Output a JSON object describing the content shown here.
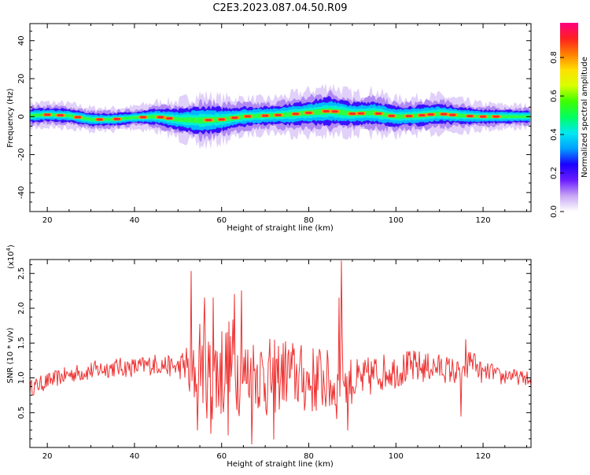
{
  "figure_title": "C2E3.2023.087.04.50.R09",
  "colorbar": {
    "label": "Normalized spectral amplitude",
    "ticks": [
      "0.0",
      "0.2",
      "0.4",
      "0.6",
      "0.8"
    ],
    "tick_values": [
      0.0,
      0.2,
      0.4,
      0.6,
      0.8
    ],
    "range": [
      0,
      0.98
    ],
    "colormap": [
      "#ffffff",
      "#c8a6f5",
      "#6a1cff",
      "#1a00ff",
      "#00a0ff",
      "#00e8f0",
      "#00ff60",
      "#3cff00",
      "#d8ff00",
      "#ffe000",
      "#ff8000",
      "#ff2020",
      "#ff0080"
    ]
  },
  "chart_data": [
    {
      "type": "heatmap",
      "xlabel": "Height of straight line (km)",
      "ylabel": "Frequency (Hz)",
      "xlim": [
        16,
        131
      ],
      "ylim": [
        -50,
        49
      ],
      "x_ticks": [
        20,
        40,
        60,
        80,
        100,
        120
      ],
      "y_ticks": [
        -40,
        -20,
        0,
        20,
        40
      ],
      "x_tick_labels": [
        "20",
        "40",
        "60",
        "80",
        "100",
        "120"
      ],
      "y_tick_labels": [
        "-40",
        "-20",
        "0",
        "20",
        "40"
      ],
      "ridge_center_hz": {
        "x": [
          16,
          20,
          25,
          30,
          35,
          40,
          45,
          50,
          55,
          60,
          65,
          70,
          75,
          80,
          85,
          90,
          95,
          100,
          105,
          110,
          115,
          120,
          125,
          131
        ],
        "y": [
          0.5,
          1.0,
          0.5,
          -1.5,
          -1.5,
          -0.5,
          0.0,
          -1.5,
          -2.0,
          -1.5,
          0.0,
          0.5,
          1.0,
          2.0,
          3.0,
          1.5,
          2.0,
          0.0,
          0.5,
          1.5,
          0.5,
          0.0,
          0.0,
          0.0
        ]
      },
      "ridge_halfwidth_hz": {
        "x": [
          16,
          40,
          50,
          55,
          60,
          65,
          70,
          80,
          85,
          90,
          95,
          100,
          110,
          120,
          131
        ],
        "y": [
          3.5,
          3.0,
          5.0,
          7.0,
          6.0,
          5.0,
          4.5,
          6.0,
          7.0,
          5.5,
          6.0,
          5.0,
          5.0,
          3.5,
          3.0
        ]
      },
      "peak_marker_km": [
        20,
        23,
        27,
        32,
        36,
        42,
        46,
        48,
        57,
        60,
        63,
        66,
        70,
        73,
        77,
        80,
        84,
        86,
        90,
        92,
        96,
        99,
        103,
        106,
        108,
        111,
        113,
        117,
        120,
        123
      ]
    },
    {
      "type": "line",
      "xlabel": "Height of straight line (km)",
      "ylabel": "SNR (10 * v/v)",
      "y_scale_label": "(x10",
      "y_scale_exponent": "4",
      "y_scale_close": ")",
      "xlim": [
        16,
        131
      ],
      "ylim": [
        0,
        2.7
      ],
      "x_ticks": [
        20,
        40,
        60,
        80,
        100,
        120
      ],
      "y_ticks": [
        0.5,
        1.0,
        1.5,
        2.0,
        2.5
      ],
      "x_tick_labels": [
        "20",
        "40",
        "60",
        "80",
        "100",
        "120"
      ],
      "y_tick_labels": [
        "0.5",
        "1.0",
        "1.5",
        "2.0",
        "2.5"
      ],
      "color": "#ee3333",
      "series": [
        {
          "x": [
            16,
            20,
            25,
            30,
            35,
            40,
            45,
            50,
            52,
            53,
            55,
            57,
            60,
            63,
            65,
            68,
            70,
            72,
            75,
            78,
            80,
            83,
            85,
            87,
            87.5,
            88,
            90,
            92,
            95,
            98,
            100,
            103,
            105,
            108,
            110,
            113,
            115,
            116,
            117,
            118,
            120,
            122,
            124,
            126,
            128,
            130,
            131
          ],
          "y": [
            0.85,
            0.95,
            1.05,
            1.1,
            1.15,
            1.15,
            1.2,
            1.15,
            1.2,
            0.9,
            1.3,
            1.0,
            1.1,
            1.2,
            1.0,
            1.1,
            1.0,
            1.0,
            1.1,
            1.0,
            0.95,
            1.0,
            0.9,
            0.8,
            1.5,
            1.0,
            0.95,
            0.95,
            1.05,
            1.1,
            1.1,
            1.15,
            1.15,
            1.15,
            1.15,
            1.1,
            1.05,
            1.0,
            1.3,
            1.2,
            1.05,
            1.1,
            1.0,
            1.05,
            1.0,
            1.0,
            0.9
          ],
          "amp": [
            0.12,
            0.12,
            0.12,
            0.14,
            0.14,
            0.14,
            0.15,
            0.15,
            0.3,
            0.45,
            0.6,
            0.65,
            0.75,
            0.7,
            0.6,
            0.55,
            0.6,
            0.55,
            0.5,
            0.5,
            0.5,
            0.5,
            0.45,
            0.45,
            0.3,
            0.35,
            0.35,
            0.3,
            0.3,
            0.25,
            0.25,
            0.25,
            0.25,
            0.2,
            0.2,
            0.2,
            0.18,
            0.15,
            0.2,
            0.15,
            0.15,
            0.12,
            0.12,
            0.12,
            0.1,
            0.1,
            0.1
          ]
        }
      ],
      "spikes": [
        {
          "x": 53.0,
          "y": 2.53
        },
        {
          "x": 56.0,
          "y": 2.15
        },
        {
          "x": 58.0,
          "y": 2.15
        },
        {
          "x": 63.0,
          "y": 2.2
        },
        {
          "x": 64.5,
          "y": 2.25
        },
        {
          "x": 87.5,
          "y": 2.68
        },
        {
          "x": 87.0,
          "y": 2.15
        },
        {
          "x": 54.5,
          "y": 0.25
        },
        {
          "x": 57.5,
          "y": 0.2
        },
        {
          "x": 61.5,
          "y": 0.18
        },
        {
          "x": 67.0,
          "y": 0.05
        },
        {
          "x": 72.0,
          "y": 0.12
        },
        {
          "x": 89.0,
          "y": 0.25
        },
        {
          "x": 115.0,
          "y": 0.45
        },
        {
          "x": 116.0,
          "y": 1.55
        },
        {
          "x": 118.0,
          "y": 1.35
        }
      ]
    }
  ]
}
